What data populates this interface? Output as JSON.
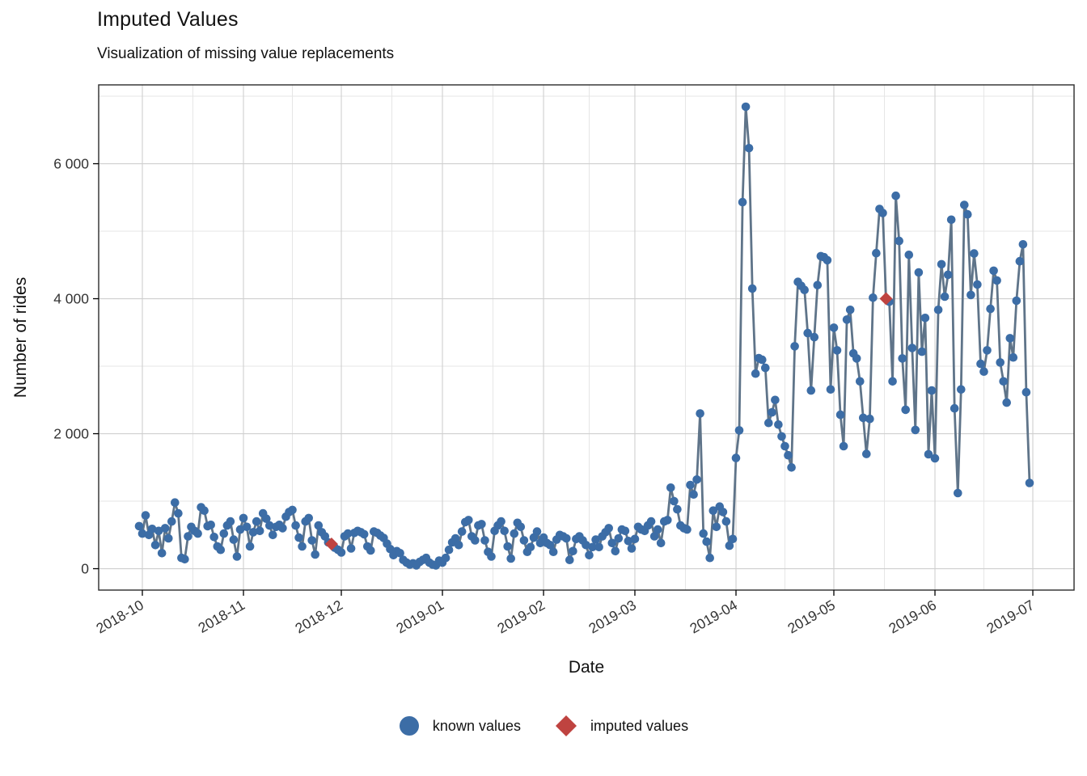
{
  "header": {
    "title": "Imputed Values",
    "subtitle": "Visualization of missing value replacements"
  },
  "chart_data": {
    "type": "line",
    "title": "Imputed Values",
    "subtitle": "Visualization of missing value replacements",
    "xlabel": "Date",
    "ylabel": "Number of rides",
    "grid": "on",
    "legend_position": "bottom",
    "start_date": "2018-09-30",
    "x_ticks": [
      {
        "date": "2018-10-01",
        "label": "2018-10"
      },
      {
        "date": "2018-11-01",
        "label": "2018-11"
      },
      {
        "date": "2018-12-01",
        "label": "2018-12"
      },
      {
        "date": "2019-01-01",
        "label": "2019-01"
      },
      {
        "date": "2019-02-01",
        "label": "2019-02"
      },
      {
        "date": "2019-03-01",
        "label": "2019-03"
      },
      {
        "date": "2019-04-01",
        "label": "2019-04"
      },
      {
        "date": "2019-05-01",
        "label": "2019-05"
      },
      {
        "date": "2019-06-01",
        "label": "2019-06"
      },
      {
        "date": "2019-07-01",
        "label": "2019-07"
      }
    ],
    "y_ticks": [
      {
        "value": 0,
        "label": "0"
      },
      {
        "value": 2000,
        "label": "2 000"
      },
      {
        "value": 4000,
        "label": "4 000"
      },
      {
        "value": 6000,
        "label": "6 000"
      }
    ],
    "y_minor_ticks": [
      1000,
      3000,
      5000,
      7000
    ],
    "ylim": [
      -317,
      7168
    ],
    "series": [
      {
        "name": "known values",
        "values": [
          630,
          520,
          790,
          500,
          590,
          350,
          560,
          230,
          600,
          450,
          700,
          980,
          820,
          160,
          140,
          480,
          620,
          560,
          520,
          910,
          860,
          630,
          650,
          470,
          330,
          280,
          520,
          640,
          700,
          430,
          180,
          580,
          750,
          620,
          330,
          540,
          700,
          560,
          820,
          740,
          640,
          500,
          620,
          650,
          600,
          770,
          840,
          870,
          640,
          460,
          330,
          700,
          750,
          420,
          210,
          640,
          540,
          480,
          390,
          365,
          310,
          280,
          240,
          480,
          520,
          300,
          530,
          560,
          540,
          510,
          330,
          270,
          550,
          530,
          490,
          455,
          370,
          290,
          200,
          260,
          230,
          130,
          90,
          60,
          80,
          50,
          100,
          130,
          160,
          90,
          60,
          50,
          120,
          90,
          160,
          280,
          390,
          450,
          350,
          550,
          690,
          720,
          480,
          420,
          640,
          660,
          420,
          250,
          180,
          560,
          640,
          700,
          560,
          330,
          150,
          520,
          680,
          620,
          420,
          250,
          320,
          460,
          550,
          380,
          460,
          380,
          350,
          250,
          430,
          500,
          480,
          450,
          130,
          260,
          440,
          480,
          420,
          350,
          200,
          320,
          430,
          320,
          480,
          540,
          600,
          380,
          260,
          450,
          580,
          560,
          410,
          300,
          440,
          620,
          580,
          560,
          640,
          700,
          480,
          580,
          380,
          700,
          720,
          1200,
          1000,
          880,
          640,
          600,
          580,
          1240,
          1100,
          1320,
          2300,
          520,
          400,
          160,
          860,
          620,
          920,
          840,
          700,
          340,
          440,
          1640,
          2050,
          5430,
          6845,
          6230,
          4150,
          2890,
          3120,
          3095,
          2975,
          2160,
          2315,
          2500,
          2135,
          1960,
          1815,
          1680,
          1500,
          3295,
          4250,
          4190,
          4130,
          3490,
          2640,
          3430,
          4200,
          4630,
          4615,
          4570,
          2655,
          3570,
          3235,
          2280,
          1815,
          3690,
          3835,
          3190,
          3115,
          2775,
          2235,
          1700,
          2220,
          4015,
          4675,
          5330,
          5270,
          4000,
          3955,
          2775,
          5525,
          4855,
          3115,
          2355,
          4650,
          3270,
          2055,
          4390,
          3215,
          3715,
          1695,
          2640,
          1635,
          3835,
          4510,
          4030,
          4355,
          5170,
          2375,
          1120,
          2655,
          5390,
          5250,
          4055,
          4670,
          4210,
          3035,
          2920,
          3235,
          3850,
          4415,
          4270,
          3055,
          2775,
          2460,
          3415,
          3130,
          3970,
          4555,
          4805,
          2615,
          1270
        ]
      }
    ],
    "imputed_points": [
      {
        "date": "2018-11-28",
        "value": 365
      },
      {
        "date": "2019-05-17",
        "value": 4000
      }
    ],
    "imputed_indices": [
      59,
      229
    ],
    "colors": {
      "known": "#3c6da6",
      "imputed": "#bf4340",
      "line": "#5f7489",
      "grid_major": "#cfcfcf",
      "grid_minor": "#e6e6e6",
      "panel_border": "#2b2b2b",
      "tick_text": "#333333"
    }
  },
  "legend": {
    "items": [
      {
        "label": "known values",
        "shape": "circle",
        "color": "#3c6da6"
      },
      {
        "label": "imputed values",
        "shape": "diamond",
        "color": "#bf4340"
      }
    ]
  }
}
